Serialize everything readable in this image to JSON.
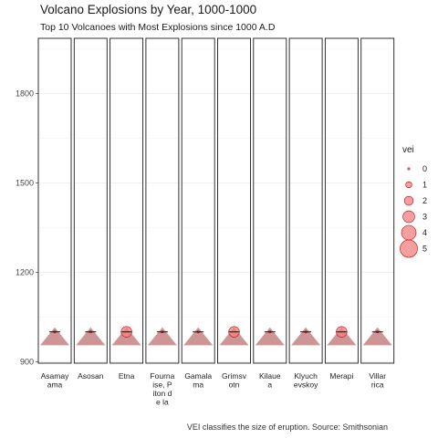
{
  "chart_data": {
    "type": "scatter",
    "title": "Volcano Explosions by Year, 1000-1000",
    "subtitle": "Top 10 Volcanoes with Most Explosions since 1000 A.D",
    "caption": "VEI classifies the size of eruption. Source: Smithsonian",
    "ylim": [
      895,
      1985
    ],
    "y_ticks": [
      900,
      1200,
      1500,
      1800
    ],
    "y_tick_labels": [
      "900",
      "1200",
      "1500",
      "1800"
    ],
    "grid": true,
    "facets": [
      "Asamayama",
      "Asosan",
      "Etna",
      "Fournaise, Piton de la",
      "Gamalama",
      "Grimsvotn",
      "Kilauea",
      "Klyuchevskoy",
      "Merapi",
      "Villarrica"
    ],
    "facet_labels": [
      [
        "Asamay",
        "ama"
      ],
      [
        "Asosan"
      ],
      [
        "Etna"
      ],
      [
        "Fourna",
        "ise, P",
        "iton d",
        "e la"
      ],
      [
        "Gamala",
        "ma"
      ],
      [
        "Grimsv",
        "otn"
      ],
      [
        "Kilaue",
        "a"
      ],
      [
        "Klyuch",
        "evskoy"
      ],
      [
        "Merapi"
      ],
      [
        "Villar",
        "rica"
      ]
    ],
    "peak_year": 1000,
    "base_year": 955,
    "points": [
      {
        "volcano": "Asamayama",
        "year": 1000,
        "vei": 0
      },
      {
        "volcano": "Asosan",
        "year": 1000,
        "vei": 0
      },
      {
        "volcano": "Etna",
        "year": 1000,
        "vei": 3
      },
      {
        "volcano": "Fournaise, Piton de la",
        "year": 1000,
        "vei": 0
      },
      {
        "volcano": "Gamalama",
        "year": 1000,
        "vei": 0
      },
      {
        "volcano": "Grimsvotn",
        "year": 1000,
        "vei": 3
      },
      {
        "volcano": "Kilauea",
        "year": 1000,
        "vei": 0
      },
      {
        "volcano": "Klyuchevskoy",
        "year": 1000,
        "vei": 0
      },
      {
        "volcano": "Merapi",
        "year": 1000,
        "vei": 3
      },
      {
        "volcano": "Villarrica",
        "year": 1000,
        "vei": 0
      }
    ],
    "legend": {
      "title": "vei",
      "entries": [
        "0",
        "1",
        "2",
        "3",
        "4",
        "5"
      ],
      "placement": "right"
    },
    "colors": {
      "point": "#f08080",
      "point_stroke": "#cc0000",
      "mountain": "#c88a8a",
      "panel_border": "#1a1a1a",
      "grid": "#ebebeb"
    }
  }
}
